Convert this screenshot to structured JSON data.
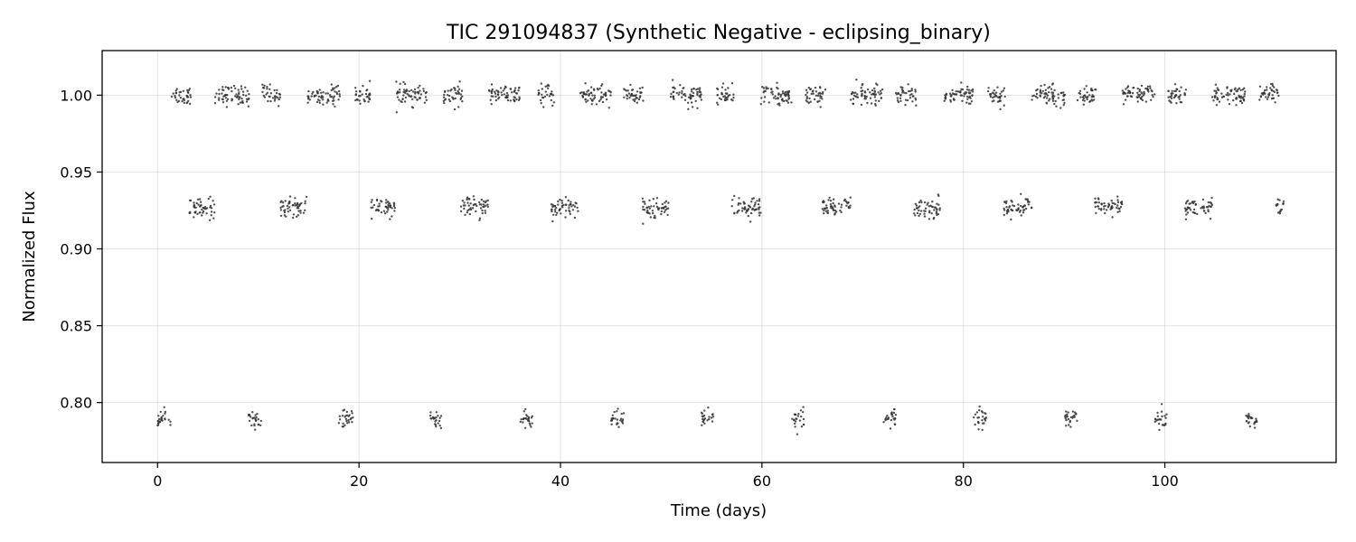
{
  "chart_data": {
    "type": "scatter",
    "title": "TIC 291094837 (Synthetic Negative - eclipsing_binary)",
    "xlabel": "Time (days)",
    "ylabel": "Normalized Flux",
    "xlim": [
      -5.5,
      117
    ],
    "ylim": [
      0.761,
      1.029
    ],
    "x_ticks": [
      0,
      20,
      40,
      60,
      80,
      100
    ],
    "y_ticks": [
      0.8,
      0.85,
      0.9,
      0.95,
      1.0
    ],
    "x_tick_labels": [
      "0",
      "20",
      "40",
      "60",
      "80",
      "100"
    ],
    "y_tick_labels": [
      "0.80",
      "0.85",
      "0.90",
      "0.95",
      "1.00"
    ],
    "grid": true,
    "legend": "none",
    "marker_color": "#333333",
    "series": [
      {
        "level": 1.0,
        "segments": [
          [
            1.4,
            3.3
          ],
          [
            5.7,
            9.1
          ],
          [
            10.4,
            12.2
          ],
          [
            14.9,
            18.1
          ],
          [
            19.5,
            21.2
          ],
          [
            23.7,
            26.9
          ],
          [
            28.3,
            30.3
          ],
          [
            32.9,
            36.1
          ],
          [
            37.8,
            39.4
          ],
          [
            41.9,
            45.0
          ],
          [
            46.3,
            48.3
          ],
          [
            50.8,
            54.0
          ],
          [
            55.5,
            57.3
          ],
          [
            59.9,
            63.0
          ],
          [
            64.3,
            66.3
          ],
          [
            68.8,
            72.0
          ],
          [
            73.3,
            75.3
          ],
          [
            77.9,
            81.0
          ],
          [
            82.4,
            84.2
          ],
          [
            86.8,
            90.1
          ],
          [
            91.3,
            93.2
          ],
          [
            95.8,
            99.0
          ],
          [
            100.3,
            102.2
          ],
          [
            104.7,
            108.0
          ],
          [
            109.3,
            111.3
          ]
        ]
      },
      {
        "level": 0.927,
        "segments": [
          [
            3.1,
            5.7
          ],
          [
            12.1,
            14.8
          ],
          [
            21.2,
            23.6
          ],
          [
            30.1,
            32.8
          ],
          [
            39.1,
            41.8
          ],
          [
            48.1,
            50.8
          ],
          [
            57.0,
            59.9
          ],
          [
            66.0,
            68.8
          ],
          [
            75.1,
            77.8
          ],
          [
            84.0,
            86.8
          ],
          [
            93.0,
            95.8
          ],
          [
            102.0,
            104.7
          ],
          [
            111.0,
            111.8
          ]
        ]
      },
      {
        "level": 0.789,
        "segments": [
          [
            0.0,
            1.3
          ],
          [
            9.0,
            10.3
          ],
          [
            18.0,
            19.4
          ],
          [
            27.0,
            28.2
          ],
          [
            36.0,
            37.3
          ],
          [
            45.0,
            46.3
          ],
          [
            54.0,
            55.2
          ],
          [
            63.0,
            64.2
          ],
          [
            72.0,
            73.3
          ],
          [
            81.0,
            82.3
          ],
          [
            90.0,
            91.3
          ],
          [
            99.0,
            100.2
          ],
          [
            108.0,
            109.2
          ]
        ]
      }
    ]
  }
}
